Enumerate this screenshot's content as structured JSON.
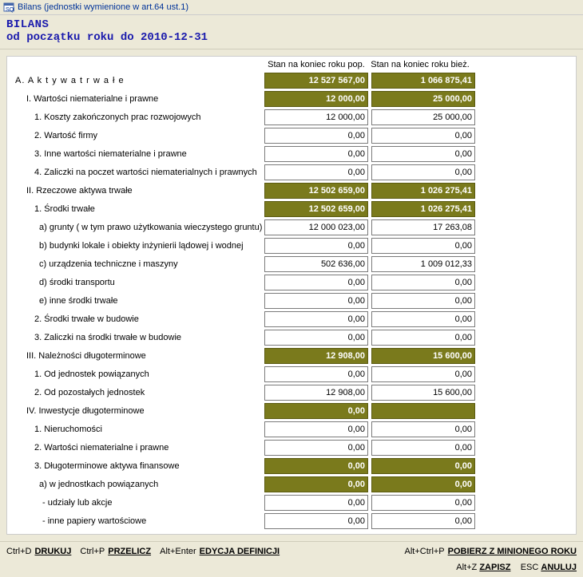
{
  "window": {
    "title": "Bilans (jednostki wymienione w art.64 ust.1)"
  },
  "header": {
    "title": "BILANS",
    "subtitle": "od początku roku do 2010-12-31"
  },
  "columns": {
    "prev": "Stan na koniec roku pop.",
    "curr": "Stan na koniec roku bież."
  },
  "rows": [
    {
      "label": "A. A k t y w a  t r w a ł e",
      "indent": 0,
      "prev": "12 527 567,00",
      "curr": "1 066 875,41",
      "hl": true
    },
    {
      "label": "I. Wartości niematerialne i prawne",
      "indent": 1,
      "prev": "12 000,00",
      "curr": "25 000,00",
      "hl": true
    },
    {
      "label": "1. Koszty zakończonych prac rozwojowych",
      "indent": 2,
      "prev": "12 000,00",
      "curr": "25 000,00",
      "hl": false
    },
    {
      "label": "2. Wartość firmy",
      "indent": 2,
      "prev": "0,00",
      "curr": "0,00",
      "hl": false
    },
    {
      "label": "3. Inne wartości niematerialne i prawne",
      "indent": 2,
      "prev": "0,00",
      "curr": "0,00",
      "hl": false
    },
    {
      "label": "4. Zaliczki na poczet wartości niematerialnych i prawnych",
      "indent": 2,
      "prev": "0,00",
      "curr": "0,00",
      "hl": false
    },
    {
      "label": "II. Rzeczowe aktywa trwałe",
      "indent": 1,
      "prev": "12 502 659,00",
      "curr": "1 026 275,41",
      "hl": true
    },
    {
      "label": "1. Środki trwałe",
      "indent": 2,
      "prev": "12 502 659,00",
      "curr": "1 026 275,41",
      "hl": true
    },
    {
      "label": "a) grunty ( w tym prawo użytkowania wieczystego gruntu)",
      "indent": 3,
      "prev": "12 000 023,00",
      "curr": "17 263,08",
      "hl": false
    },
    {
      "label": "b) budynki lokale i obiekty inżynierii lądowej i wodnej",
      "indent": 3,
      "prev": "0,00",
      "curr": "0,00",
      "hl": false
    },
    {
      "label": "c) urządzenia techniczne i maszyny",
      "indent": 3,
      "prev": "502 636,00",
      "curr": "1 009 012,33",
      "hl": false
    },
    {
      "label": "d) środki transportu",
      "indent": 3,
      "prev": "0,00",
      "curr": "0,00",
      "hl": false
    },
    {
      "label": "e) inne środki trwałe",
      "indent": 3,
      "prev": "0,00",
      "curr": "0,00",
      "hl": false
    },
    {
      "label": "2. Środki trwałe w budowie",
      "indent": 2,
      "prev": "0,00",
      "curr": "0,00",
      "hl": false
    },
    {
      "label": "3. Zaliczki na środki trwałe w budowie",
      "indent": 2,
      "prev": "0,00",
      "curr": "0,00",
      "hl": false
    },
    {
      "label": "III. Należności długoterminowe",
      "indent": 1,
      "prev": "12 908,00",
      "curr": "15 600,00",
      "hl": true
    },
    {
      "label": "1. Od jednostek powiązanych",
      "indent": 2,
      "prev": "0,00",
      "curr": "0,00",
      "hl": false
    },
    {
      "label": "2. Od pozostałych jednostek",
      "indent": 2,
      "prev": "12 908,00",
      "curr": "15 600,00",
      "hl": false
    },
    {
      "label": "IV. Inwestycje długoterminowe",
      "indent": 1,
      "prev": "0,00",
      "curr": "",
      "hl": true
    },
    {
      "label": "1. Nieruchomości",
      "indent": 2,
      "prev": "0,00",
      "curr": "0,00",
      "hl": false
    },
    {
      "label": "2. Wartości niematerialne i prawne",
      "indent": 2,
      "prev": "0,00",
      "curr": "0,00",
      "hl": false
    },
    {
      "label": "3. Długoterminowe aktywa finansowe",
      "indent": 2,
      "prev": "0,00",
      "curr": "0,00",
      "hl": true
    },
    {
      "label": "a) w jednostkach powiązanych",
      "indent": 3,
      "prev": "0,00",
      "curr": "0,00",
      "hl": true
    },
    {
      "label": "- udziały lub akcje",
      "indent": 4,
      "prev": "0,00",
      "curr": "0,00",
      "hl": false
    },
    {
      "label": "- inne papiery wartościowe",
      "indent": 4,
      "prev": "0,00",
      "curr": "0,00",
      "hl": false
    }
  ],
  "footer": {
    "a1_key": "Ctrl+D",
    "a1_cmd": "DRUKUJ",
    "a2_key": "Ctrl+P",
    "a2_cmd": "PRZELICZ",
    "a3_key": "Alt+Enter",
    "a3_cmd": "EDYCJA DEFINICJI",
    "a4_key": "Alt+Ctrl+P",
    "a4_cmd": "POBIERZ Z MINIONEGO ROKU",
    "b1_key": "Alt+Z",
    "b1_cmd": "ZAPISZ",
    "b2_key": "ESC",
    "b2_cmd": "ANULUJ"
  },
  "style": {
    "highlight_bg": "#7a7a1c",
    "highlight_fg": "#ffffff",
    "input_bg": "#ffffff"
  }
}
